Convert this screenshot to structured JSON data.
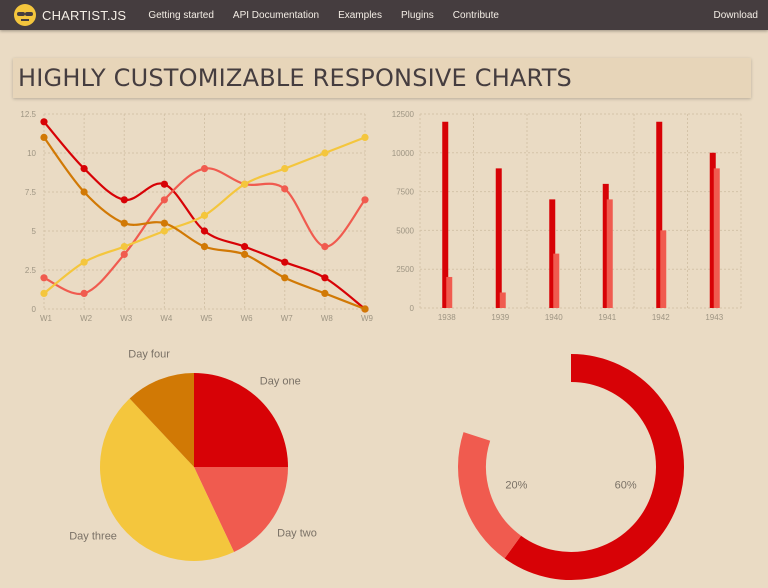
{
  "nav": {
    "brand": "CHARTIST.JS",
    "items": [
      "Getting started",
      "API Documentation",
      "Examples",
      "Plugins",
      "Contribute"
    ],
    "right": "Download"
  },
  "hero": {
    "title": "HIGHLY CUSTOMIZABLE RESPONSIVE CHARTS"
  },
  "colors": {
    "series_a": "#d70206",
    "series_b": "#f05b4f",
    "series_c": "#f4c63d",
    "series_d": "#d17905",
    "background": "#eadbc4",
    "navbar": "#453d3f"
  },
  "chart_data": [
    {
      "type": "line",
      "categories": [
        "W1",
        "W2",
        "W3",
        "W4",
        "W5",
        "W6",
        "W7",
        "W8",
        "W9"
      ],
      "ylim": [
        0,
        12.5
      ],
      "yticks": [
        "0",
        "2.5",
        "5",
        "7.5",
        "10",
        "12.5"
      ],
      "series": [
        {
          "name": "series-a",
          "color": "#d70206",
          "values": [
            12,
            9,
            7,
            8,
            5,
            4,
            3,
            2,
            0
          ]
        },
        {
          "name": "series-b",
          "color": "#f05b4f",
          "values": [
            2,
            1,
            3.5,
            7,
            9,
            8,
            7.7,
            4,
            7
          ]
        },
        {
          "name": "series-c",
          "color": "#f4c63d",
          "values": [
            1,
            3,
            4,
            5,
            6,
            8,
            9,
            10,
            11
          ]
        },
        {
          "name": "series-d",
          "color": "#d17905",
          "values": [
            11,
            7.5,
            5.5,
            5.5,
            4,
            3.5,
            2,
            1,
            0
          ]
        }
      ]
    },
    {
      "type": "bar",
      "categories": [
        "1938",
        "1939",
        "1940",
        "1941",
        "1942",
        "1943"
      ],
      "ylim": [
        0,
        12500
      ],
      "yticks": [
        "0",
        "2500",
        "5000",
        "7500",
        "10000",
        "12500"
      ],
      "series": [
        {
          "name": "series-a",
          "color": "#d70206",
          "values": [
            12000,
            9000,
            7000,
            8000,
            12000,
            10000
          ]
        },
        {
          "name": "series-b",
          "color": "#f05b4f",
          "values": [
            2000,
            1000,
            3500,
            7000,
            5000,
            9000
          ]
        }
      ]
    },
    {
      "type": "pie",
      "labels": [
        "Day one",
        "Day two",
        "Day three",
        "Day four"
      ],
      "values": [
        25,
        18,
        45,
        12
      ],
      "colors": [
        "#d70206",
        "#f05b4f",
        "#f4c63d",
        "#d17905"
      ]
    },
    {
      "type": "donut",
      "labels": [
        "60%",
        "20%"
      ],
      "values": [
        60,
        20
      ],
      "total": 100,
      "colors": [
        "#d70206",
        "#f05b4f"
      ]
    }
  ]
}
